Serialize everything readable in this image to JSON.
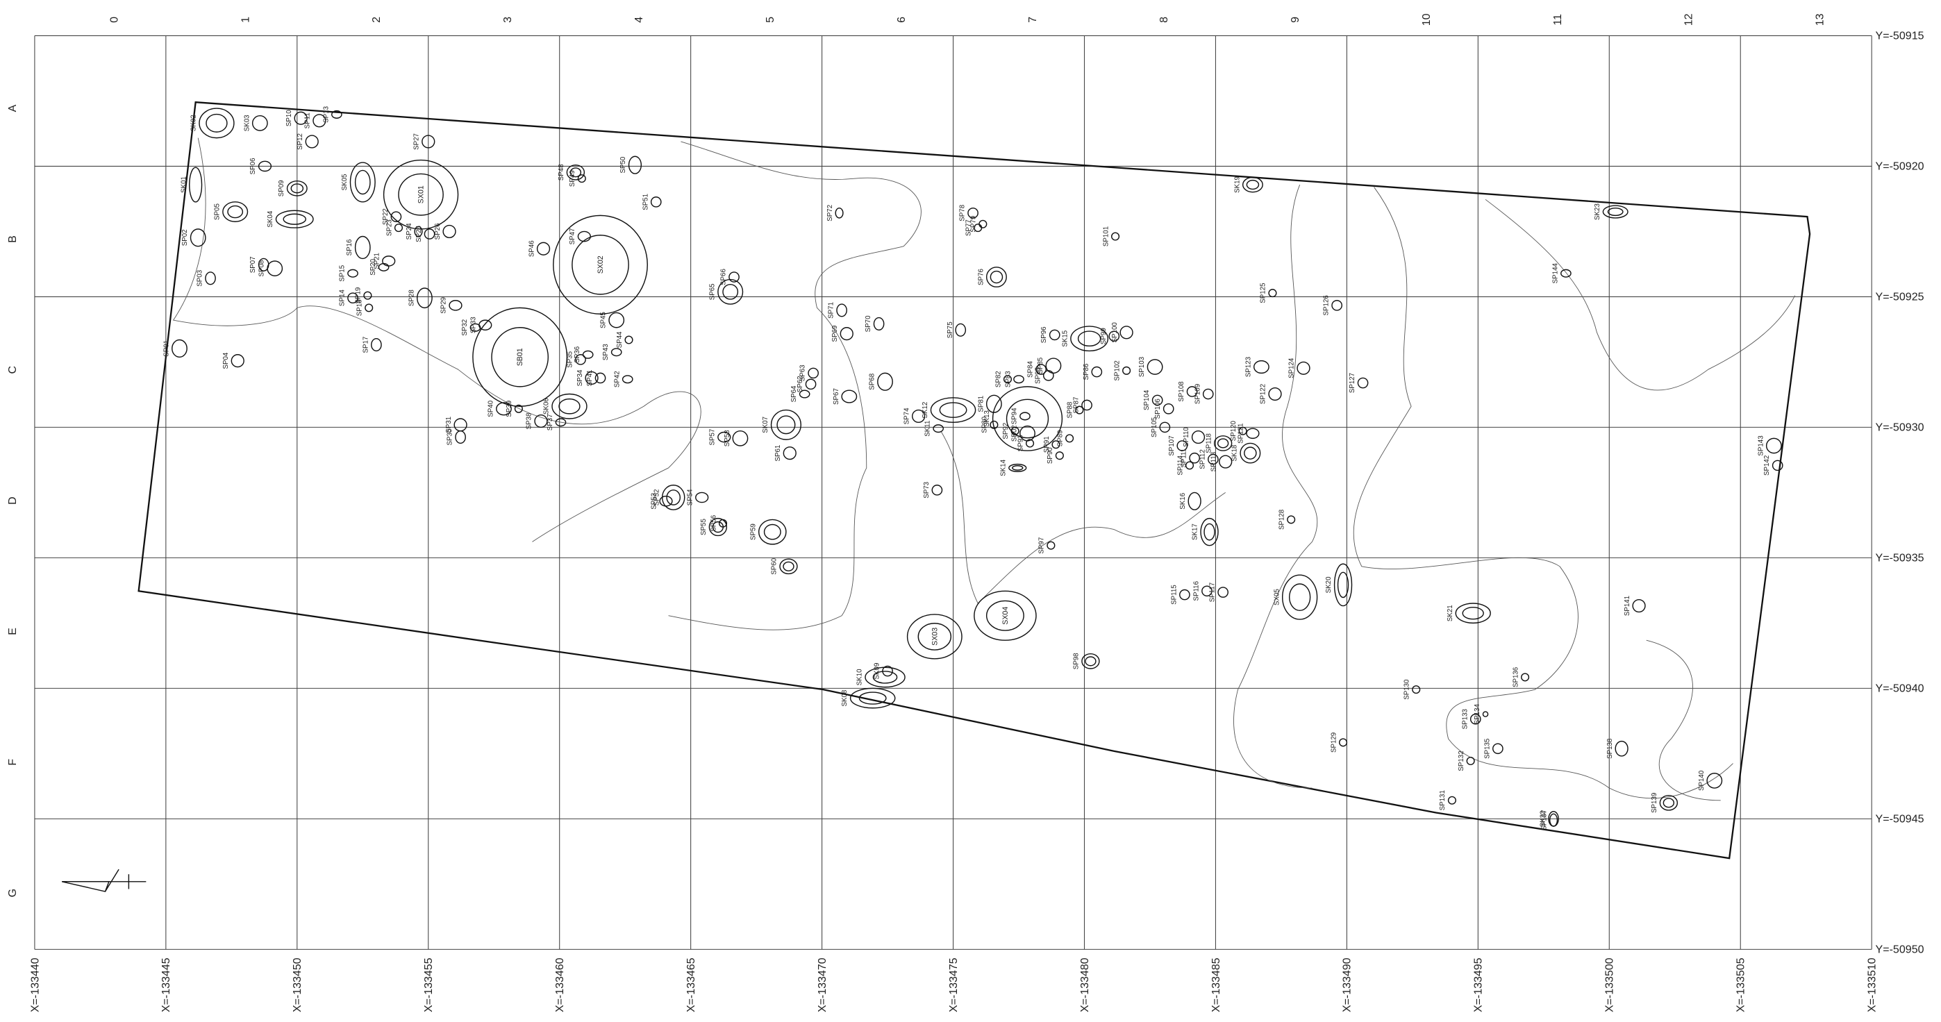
{
  "grid": {
    "columns": [
      "0",
      "1",
      "2",
      "3",
      "4",
      "5",
      "6",
      "7",
      "8",
      "9",
      "10",
      "11",
      "12",
      "13"
    ],
    "rows": [
      "A",
      "B",
      "C",
      "D",
      "E",
      "F",
      "G"
    ],
    "y_labels": [
      "Y=-50915",
      "Y=-50920",
      "Y=-50925",
      "Y=-50930",
      "Y=-50935",
      "Y=-50940",
      "Y=-50945",
      "Y=-50950"
    ],
    "x_labels": [
      "X=-133440",
      "X=-133445",
      "X=-133450",
      "X=-133455",
      "X=-133460",
      "X=-133465",
      "X=-133470",
      "X=-133475",
      "X=-133480",
      "X=-133485",
      "X=-133490",
      "X=-133495",
      "X=-133500",
      "X=-133505",
      "X=-133510"
    ]
  },
  "features": [
    "SK01",
    "SK02",
    "SK03",
    "SP06",
    "SP10",
    "SP11",
    "SP13",
    "SP12",
    "SP09",
    "SP05",
    "SK04",
    "SP02",
    "SP03",
    "SP07",
    "SP08",
    "SP01",
    "SP04",
    "SK05",
    "SP16",
    "SP15",
    "SP14",
    "SP18",
    "SP19",
    "SP20",
    "SP21",
    "SP22",
    "SP23",
    "SP24",
    "SP25",
    "SP26",
    "SX01",
    "SP27",
    "SP17",
    "SP28",
    "SP29",
    "SP33",
    "SP32",
    "SB01",
    "SP30",
    "SP31",
    "SP40",
    "SP39",
    "SP38",
    "SP37",
    "SK06",
    "SP35",
    "SP36",
    "SP34",
    "SP43",
    "SP41",
    "SP44",
    "SP42",
    "SP45",
    "SX02",
    "SP46",
    "SP47",
    "SP48",
    "SP49",
    "SP50",
    "SP51",
    "SP52",
    "SP53",
    "SP54",
    "SP55",
    "SP56",
    "SP57",
    "SP58",
    "SP59",
    "SP60",
    "SP61",
    "SK07",
    "SP62",
    "SP63",
    "SP64",
    "SP65",
    "SP66",
    "SP67",
    "SP68",
    "SP69",
    "SP70",
    "SP71",
    "SP72",
    "SP73",
    "SP74",
    "SP75",
    "SP76",
    "SP77",
    "SP78",
    "SP79",
    "SK12",
    "SK11",
    "SB02",
    "SP80",
    "SP81",
    "SP82",
    "SP83",
    "SK13",
    "SP84",
    "SP85",
    "SP86",
    "SP87",
    "SP88",
    "SP89",
    "SP90",
    "SK14",
    "SP91",
    "SP92",
    "SP93",
    "SP94",
    "SP95",
    "SP96",
    "SK15",
    "SP97",
    "SP98",
    "SX04",
    "SX03",
    "SK10",
    "SK09",
    "SK08",
    "SP99",
    "SP100",
    "SP101",
    "SP102",
    "SP103",
    "SP104",
    "SP105",
    "SP106",
    "SP107",
    "SP108",
    "SP109",
    "SP110",
    "SP111",
    "SP112",
    "SP113",
    "SP114",
    "SP115",
    "SP116",
    "SP117",
    "SP118",
    "SP120",
    "SP121",
    "SP122",
    "SP123",
    "SP124",
    "SP125",
    "SP126",
    "SP127",
    "SP128",
    "SK16",
    "SK17",
    "SK18",
    "SK19",
    "SX05",
    "SK20",
    "SK21",
    "SP129",
    "SP130",
    "SP131",
    "SP132",
    "SP133",
    "SP134",
    "SP135",
    "SP136",
    "SP137",
    "SK22",
    "SP138",
    "SP139",
    "SP140",
    "SP141",
    "SP142",
    "SP143",
    "SP144",
    "SK23"
  ]
}
